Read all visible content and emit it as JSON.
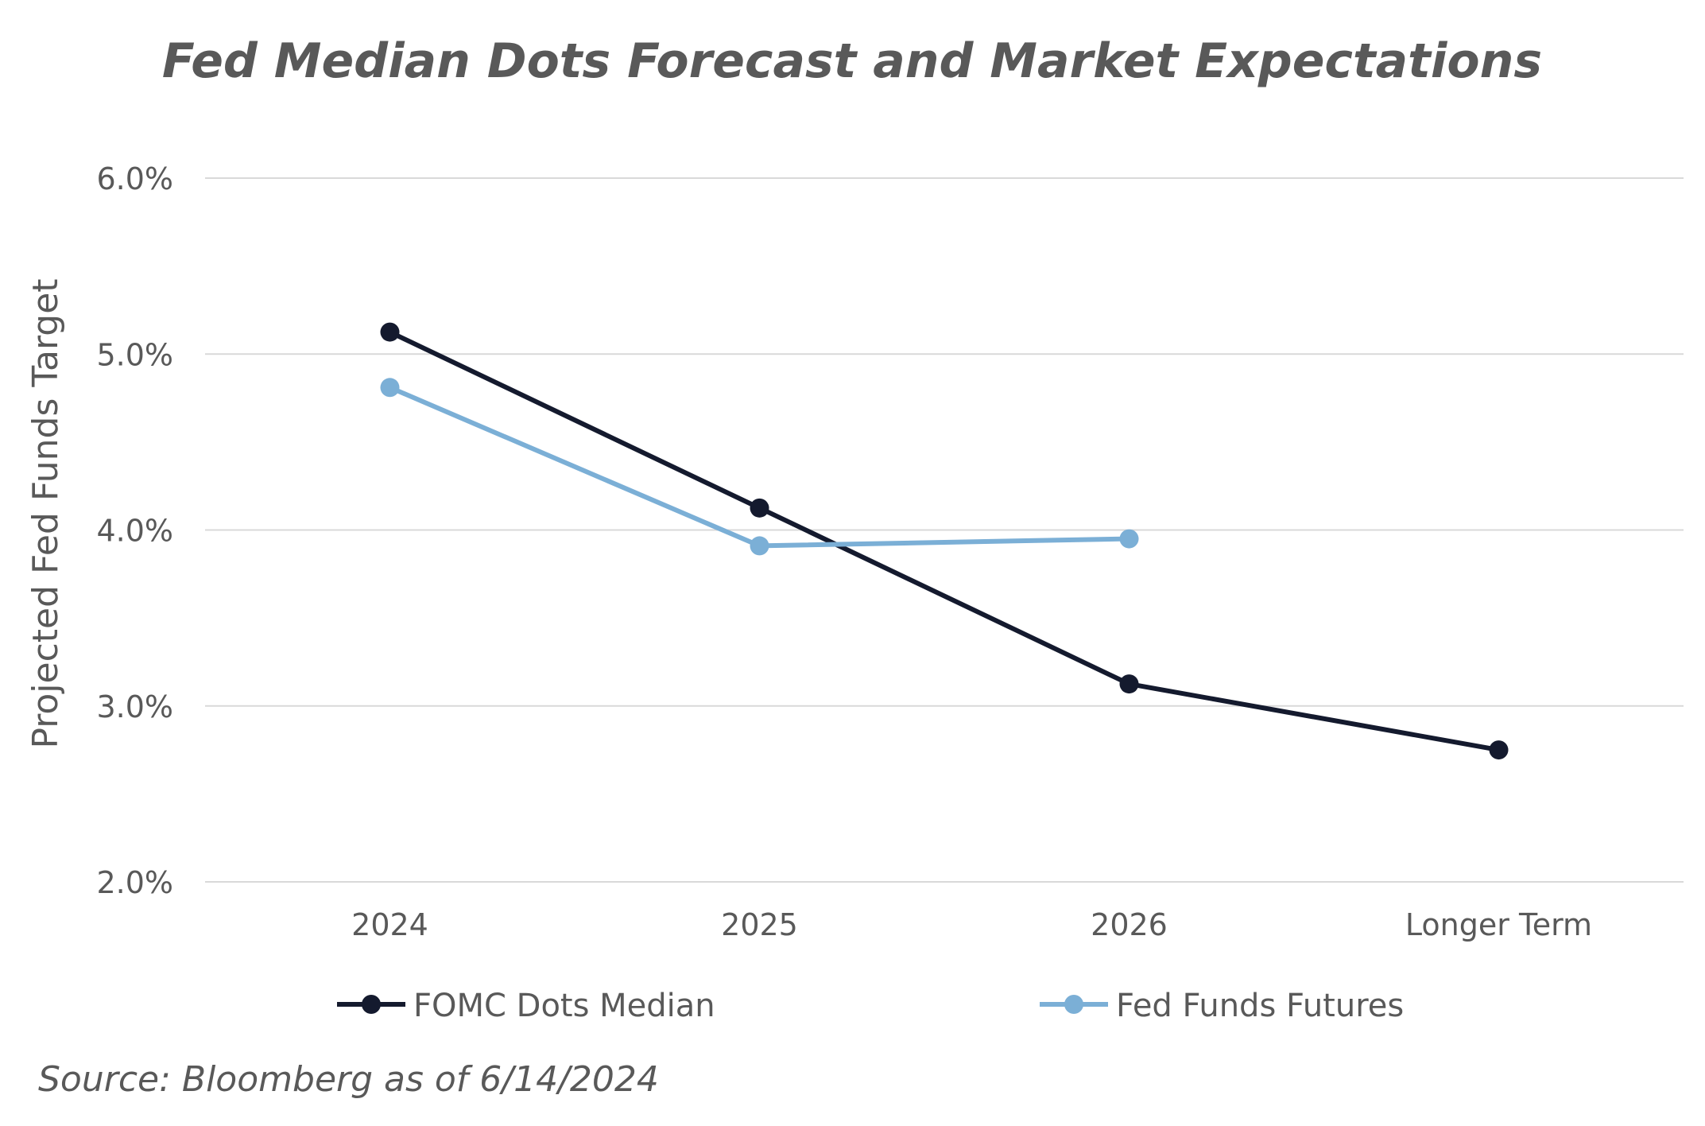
{
  "chart_data": {
    "type": "line",
    "title": "Fed Median Dots Forecast and Market Expectations",
    "xlabel": "",
    "ylabel": "Projected Fed Funds Target",
    "categories": [
      "2024",
      "2025",
      "2026",
      "Longer Term"
    ],
    "ylim": [
      2.0,
      6.0
    ],
    "yticks": [
      2.0,
      3.0,
      4.0,
      5.0,
      6.0
    ],
    "ytick_labels": [
      "2.0%",
      "3.0%",
      "4.0%",
      "5.0%",
      "6.0%"
    ],
    "grid": true,
    "legend_position": "bottom",
    "series": [
      {
        "name": "FOMC Dots Median",
        "color": "#141a2e",
        "values": [
          5.125,
          4.125,
          3.125,
          2.75
        ]
      },
      {
        "name": "Fed Funds Futures",
        "color": "#7bafd6",
        "values": [
          4.81,
          3.91,
          3.95,
          null
        ]
      }
    ],
    "source": "Source: Bloomberg as of 6/14/2024"
  }
}
